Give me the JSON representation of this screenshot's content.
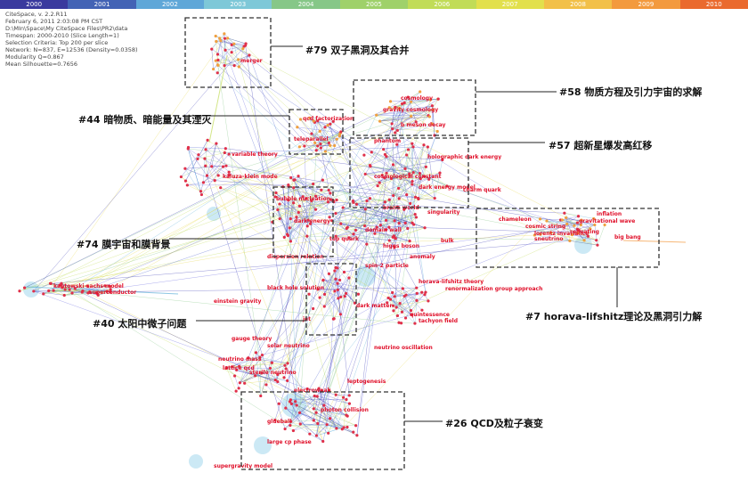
{
  "timeline": {
    "years": [
      "2000",
      "2001",
      "2002",
      "2003",
      "2004",
      "2005",
      "2006",
      "2007",
      "2008",
      "2009",
      "2010"
    ],
    "colors": [
      "#3a3a9e",
      "#4363b5",
      "#5fa7d8",
      "#7ec8d8",
      "#86c788",
      "#9fd16a",
      "#c1dc57",
      "#e2e04c",
      "#f2c048",
      "#f39a3e",
      "#ea6a2e"
    ]
  },
  "meta_lines": [
    "CiteSpace, v. 2.2.R11",
    "February 6, 2011 2:03:08 PM CST",
    "D:\\MIn\\Space\\My CiteSpace Files\\PR2\\data",
    "Timespan: 2000-2010 (Slice Length=1)",
    "Selection Criteria: Top 200 per slice",
    "Network: N=837, E=12536 (Density=0.0358)",
    "Modularity Q=0.867",
    "Mean Silhouette=0.7656"
  ],
  "clusters": [
    {
      "id": "79",
      "label": "#79 双子黑洞及其合并"
    },
    {
      "id": "58",
      "label": "#58 物质方程及引力宇宙的求解"
    },
    {
      "id": "44",
      "label": "#44 暗物质、暗能量及其湮灭"
    },
    {
      "id": "57",
      "label": "#57 超新星爆发高红移"
    },
    {
      "id": "74",
      "label": "#74 膜宇宙和膜背景"
    },
    {
      "id": "7",
      "label": "#7 horava-lifshitz理论及黑洞引力解"
    },
    {
      "id": "40",
      "label": "#40 太阳中微子问题"
    },
    {
      "id": "26",
      "label": "#26 QCD及粒子衰变"
    }
  ],
  "node_labels": [
    "merger",
    "gravity cosmology",
    "cosmology",
    "teleparallel",
    "phantom",
    "holographic dark energy",
    "cosmological constant",
    "dark energy model",
    "bubble nucleation",
    "brane world",
    "singularity",
    "dark energy",
    "domain wall",
    "bulk",
    "gravitational wave",
    "inflation",
    "reheating",
    "big bang",
    "chameleon",
    "cosmic string",
    "lorentz invariance",
    "dispersion relation",
    "spin-2 particle",
    "horava-lifshitz theory",
    "renormalization group approach",
    "black hole solution",
    "einstein gravity",
    "superconductor",
    "kantowski-sachs model",
    "dark matter",
    "quintessence",
    "tachyon field",
    "gauge theory",
    "solar neutrino",
    "neutrino oscillation",
    "neutrino mass",
    "sterile neutrino",
    "leptogenesis",
    "photon collision",
    "large cp phase",
    "supergravity model",
    "sneutrino",
    "kaluza-klein mode",
    "variable theory",
    "qcd factorization",
    "b meson decay",
    "charm quark",
    "top quark",
    "higgs boson",
    "jet",
    "electroweak",
    "glueball",
    "lattice qcd",
    "anomaly"
  ]
}
